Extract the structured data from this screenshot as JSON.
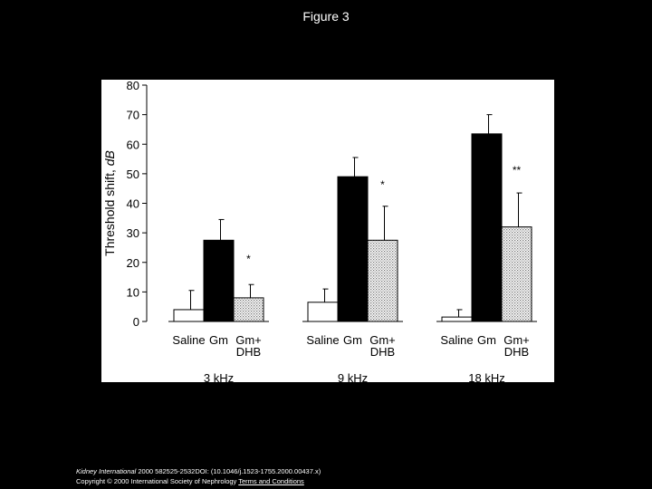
{
  "page": {
    "title": "Figure 3"
  },
  "footer": {
    "journal": "Kidney International",
    "citation": " 2000 582525-2532DOI: (10.1046/j.1523-1755.2000.00437.x)",
    "copyright": "Copyright © 2000 International Society of Nephrology ",
    "link_text": "Terms and Conditions"
  },
  "colors": {
    "saline": "#ffffff",
    "gm": "#000000",
    "gm_dhb": "#d9d9d9"
  },
  "chart_data": {
    "type": "bar",
    "ylabel_prefix": "Threshold shift, ",
    "ylabel_unit": "dB",
    "ylim": [
      0,
      80
    ],
    "yticks": [
      0,
      10,
      20,
      30,
      40,
      50,
      60,
      70,
      80
    ],
    "grid": false,
    "legend": "none",
    "categories": [
      "3 kHz",
      "9 kHz",
      "18 kHz"
    ],
    "bar_labels": [
      {
        "line1": "Saline",
        "line2": ""
      },
      {
        "line1": "Gm",
        "line2": ""
      },
      {
        "line1": "Gm+",
        "line2": "DHB"
      }
    ],
    "series": [
      {
        "values": [
          4,
          6.5,
          1.5
        ],
        "errors": [
          6.5,
          4.5,
          2.5
        ]
      },
      {
        "values": [
          27.5,
          49,
          63.5
        ],
        "errors": [
          7,
          6.5,
          6.5
        ]
      },
      {
        "values": [
          8,
          27.5,
          32
        ],
        "errors": [
          4.5,
          11.5,
          11.5
        ]
      }
    ],
    "annotations": [
      {
        "category": 0,
        "series": 2,
        "text": "*",
        "y": 20
      },
      {
        "category": 1,
        "series": 2,
        "text": "*",
        "y": 45
      },
      {
        "category": 2,
        "series": 2,
        "text": "**",
        "y": 50
      }
    ]
  }
}
